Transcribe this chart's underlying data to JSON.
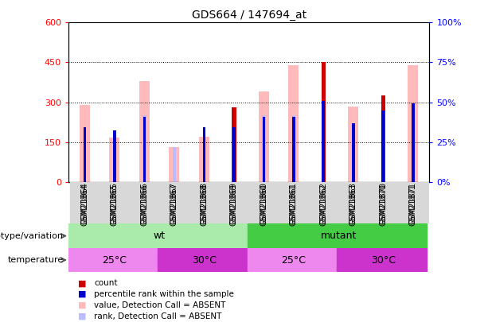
{
  "title": "GDS664 / 147694_at",
  "samples": [
    "GSM21864",
    "GSM21865",
    "GSM21866",
    "GSM21867",
    "GSM21868",
    "GSM21869",
    "GSM21860",
    "GSM21861",
    "GSM21862",
    "GSM21863",
    "GSM21870",
    "GSM21871"
  ],
  "count": [
    0,
    0,
    0,
    0,
    0,
    280,
    0,
    0,
    450,
    0,
    325,
    0
  ],
  "percentile_rank": [
    205,
    195,
    245,
    0,
    205,
    205,
    245,
    245,
    305,
    220,
    270,
    295
  ],
  "value_absent": [
    290,
    168,
    380,
    130,
    170,
    0,
    340,
    440,
    0,
    285,
    0,
    440
  ],
  "rank_absent": [
    0,
    0,
    250,
    130,
    0,
    0,
    250,
    250,
    0,
    0,
    0,
    0
  ],
  "ylim_left": [
    0,
    600
  ],
  "ylim_right": [
    0,
    100
  ],
  "yticks_left": [
    0,
    150,
    300,
    450,
    600
  ],
  "yticks_right": [
    0,
    25,
    50,
    75,
    100
  ],
  "ytick_labels_left": [
    "0",
    "150",
    "300",
    "450",
    "600"
  ],
  "ytick_labels_right": [
    "0%",
    "25%",
    "50%",
    "75%",
    "100%"
  ],
  "color_count": "#cc0000",
  "color_percentile": "#0000cc",
  "color_value_absent": "#ffbbbb",
  "color_rank_absent": "#bbbbff",
  "color_wt": "#aaeaaa",
  "color_mutant": "#44cc44",
  "color_temp25": "#ee88ee",
  "color_temp30": "#cc33cc",
  "background_color": "#ffffff"
}
